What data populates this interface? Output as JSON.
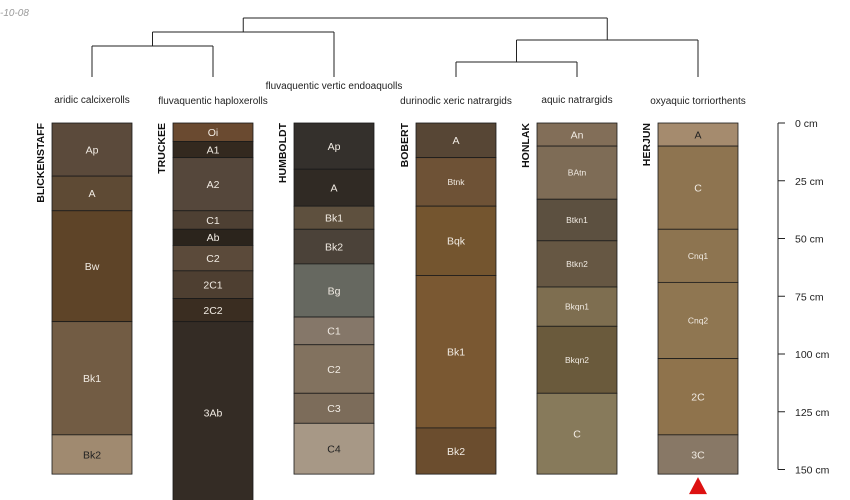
{
  "corner_label": "-10-08",
  "chart_data": {
    "type": "soil-profile-sketch",
    "depth_unit": "cm",
    "depth_ticks": [
      {
        "value": 0,
        "label": "0 cm"
      },
      {
        "value": 25,
        "label": "25 cm"
      },
      {
        "value": 50,
        "label": "50 cm"
      },
      {
        "value": 75,
        "label": "75 cm"
      },
      {
        "value": 100,
        "label": "100 cm"
      },
      {
        "value": 125,
        "label": "125 cm"
      },
      {
        "value": 150,
        "label": "150 cm"
      }
    ],
    "profiles": [
      {
        "id": "blickenstaff",
        "name": "BLICKENSTAFF",
        "taxon": "aridic calcixerolls",
        "taxon_row": 1,
        "horizons": [
          {
            "name": "Ap",
            "top": 0,
            "bottom": 23,
            "color": "#5b4a3b"
          },
          {
            "name": "A",
            "top": 23,
            "bottom": 38,
            "color": "#5e4a34"
          },
          {
            "name": "Bw",
            "top": 38,
            "bottom": 86,
            "color": "#5e4428"
          },
          {
            "name": "Bk1",
            "top": 86,
            "bottom": 135,
            "color": "#725c44"
          },
          {
            "name": "Bk2",
            "top": 135,
            "bottom": 152,
            "color": "#a08a70"
          }
        ]
      },
      {
        "id": "truckee",
        "name": "TRUCKEE",
        "taxon": "fluvaquentic haploxerolls",
        "taxon_row": 2,
        "horizons": [
          {
            "name": "Oi",
            "top": 0,
            "bottom": 8,
            "color": "#6a4a30"
          },
          {
            "name": "A1",
            "top": 8,
            "bottom": 15,
            "color": "#33291f"
          },
          {
            "name": "A2",
            "top": 15,
            "bottom": 38,
            "color": "#55473b"
          },
          {
            "name": "C1",
            "top": 38,
            "bottom": 46,
            "color": "#4e4033"
          },
          {
            "name": "Ab",
            "top": 46,
            "bottom": 53,
            "color": "#2b241c"
          },
          {
            "name": "C2",
            "top": 53,
            "bottom": 64,
            "color": "#5b4a3a"
          },
          {
            "name": "2C1",
            "top": 64,
            "bottom": 76,
            "color": "#4e3f31"
          },
          {
            "name": "2C2",
            "top": 76,
            "bottom": 86,
            "color": "#3a2d21"
          },
          {
            "name": "3Ab",
            "top": 86,
            "bottom": 165,
            "color": "#342c25"
          }
        ]
      },
      {
        "id": "humboldt",
        "name": "HUMBOLDT",
        "taxon": "fluvaquentic vertic endoaquolls",
        "taxon_row": 0,
        "horizons": [
          {
            "name": "Ap",
            "top": 0,
            "bottom": 20,
            "color": "#34302c"
          },
          {
            "name": "A",
            "top": 20,
            "bottom": 36,
            "color": "#302a24"
          },
          {
            "name": "Bk1",
            "top": 36,
            "bottom": 46,
            "color": "#5e503e"
          },
          {
            "name": "Bk2",
            "top": 46,
            "bottom": 61,
            "color": "#4b4239"
          },
          {
            "name": "Bg",
            "top": 61,
            "bottom": 84,
            "color": "#666860"
          },
          {
            "name": "C1",
            "top": 84,
            "bottom": 96,
            "color": "#857769"
          },
          {
            "name": "C2",
            "top": 96,
            "bottom": 117,
            "color": "#82725f"
          },
          {
            "name": "C3",
            "top": 117,
            "bottom": 130,
            "color": "#7c6c5a"
          },
          {
            "name": "C4",
            "top": 130,
            "bottom": 152,
            "color": "#a79886"
          }
        ]
      },
      {
        "id": "bobert",
        "name": "BOBERT",
        "taxon": "durinodic xeric natrargids",
        "taxon_row": 2,
        "horizons": [
          {
            "name": "A",
            "top": 0,
            "bottom": 15,
            "color": "#574635"
          },
          {
            "name": "Btnk",
            "top": 15,
            "bottom": 36,
            "color": "#6e5236"
          },
          {
            "name": "Bqk",
            "top": 36,
            "bottom": 66,
            "color": "#74552f"
          },
          {
            "name": "Bk1",
            "top": 66,
            "bottom": 132,
            "color": "#7a5832"
          },
          {
            "name": "Bk2",
            "top": 132,
            "bottom": 152,
            "color": "#6b4d2e"
          }
        ]
      },
      {
        "id": "honlak",
        "name": "HONLAK",
        "taxon": "aquic natrargids",
        "taxon_row": 1,
        "horizons": [
          {
            "name": "An",
            "top": 0,
            "bottom": 10,
            "color": "#826e58"
          },
          {
            "name": "BAtn",
            "top": 10,
            "bottom": 33,
            "color": "#7e6c56"
          },
          {
            "name": "Btkn1",
            "top": 33,
            "bottom": 51,
            "color": "#5c5040"
          },
          {
            "name": "Btkn2",
            "top": 51,
            "bottom": 71,
            "color": "#665743"
          },
          {
            "name": "Bkqn1",
            "top": 71,
            "bottom": 88,
            "color": "#7e6e50"
          },
          {
            "name": "Bkqn2",
            "top": 88,
            "bottom": 117,
            "color": "#6a5a3c"
          },
          {
            "name": "C",
            "top": 117,
            "bottom": 152,
            "color": "#877a5b"
          }
        ]
      },
      {
        "id": "herjun",
        "name": "HERJUN",
        "taxon": "oxyaquic torriorthents",
        "taxon_row": 2,
        "horizons": [
          {
            "name": "A",
            "top": 0,
            "bottom": 10,
            "color": "#a58b6e"
          },
          {
            "name": "C",
            "top": 10,
            "bottom": 46,
            "color": "#8e7450"
          },
          {
            "name": "Cnq1",
            "top": 46,
            "bottom": 69,
            "color": "#8d7450"
          },
          {
            "name": "Cnq2",
            "top": 69,
            "bottom": 102,
            "color": "#8f7651"
          },
          {
            "name": "2C",
            "top": 102,
            "bottom": 135,
            "color": "#8f734c"
          },
          {
            "name": "3C",
            "top": 135,
            "bottom": 152,
            "color": "#887866"
          }
        ]
      }
    ],
    "dendrogram": {
      "description": "cluster tree linking the six profiles",
      "groups": [
        [
          "blickenstaff",
          "truckee"
        ],
        [
          "humboldt"
        ],
        [
          "bobert",
          "honlak"
        ],
        [
          "herjun"
        ]
      ]
    },
    "markers": [
      {
        "profile": "herjun",
        "shape": "triangle",
        "color": "#dd1111",
        "meaning": "profile extends deeper"
      }
    ]
  }
}
